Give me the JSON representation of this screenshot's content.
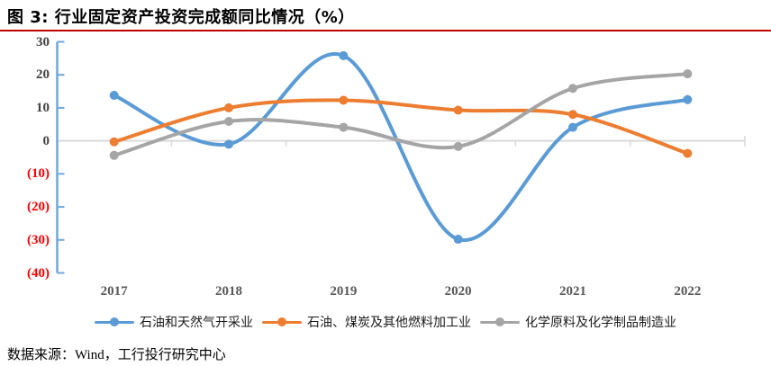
{
  "header": {
    "title": "图 3: 行业固定资产投资完成额同比情况（%）"
  },
  "source_note": "数据来源：Wind，工行投行研究中心",
  "colors": {
    "title_rule": "#C00000",
    "negative_tick_label": "#FF0000",
    "positive_tick_label": "#404040",
    "x_tick_label": "#595959",
    "y_axis_line": "#6FA8DC",
    "zero_gridline": "#D9D9D9"
  },
  "chart_data": {
    "type": "line",
    "smooth": true,
    "categories": [
      "2017",
      "2018",
      "2019",
      "2020",
      "2021",
      "2022"
    ],
    "series": [
      {
        "name": "石油和天然气开采业",
        "color": "#5B9BD5",
        "values": [
          13.8,
          -1.0,
          25.8,
          -29.8,
          4.1,
          12.5
        ]
      },
      {
        "name": "石油、煤炭及其他燃料加工业",
        "color": "#ED7D31",
        "values": [
          -0.3,
          10.0,
          12.3,
          9.3,
          8.0,
          -3.8
        ]
      },
      {
        "name": "化学原料及化学制品制造业",
        "color": "#A5A5A5",
        "values": [
          -4.4,
          5.9,
          4.1,
          -1.7,
          15.9,
          20.3
        ]
      }
    ],
    "title": "行业固定资产投资完成额同比情况（%）",
    "xlabel": "",
    "ylabel": "",
    "ylim": [
      -40,
      30
    ],
    "ytick_step": 10,
    "y_tick_labels": [
      "30",
      "20",
      "10",
      "0",
      "(10)",
      "(20)",
      "(30)",
      "(40)"
    ],
    "grid": "zero-line-only",
    "legend_position": "bottom"
  }
}
